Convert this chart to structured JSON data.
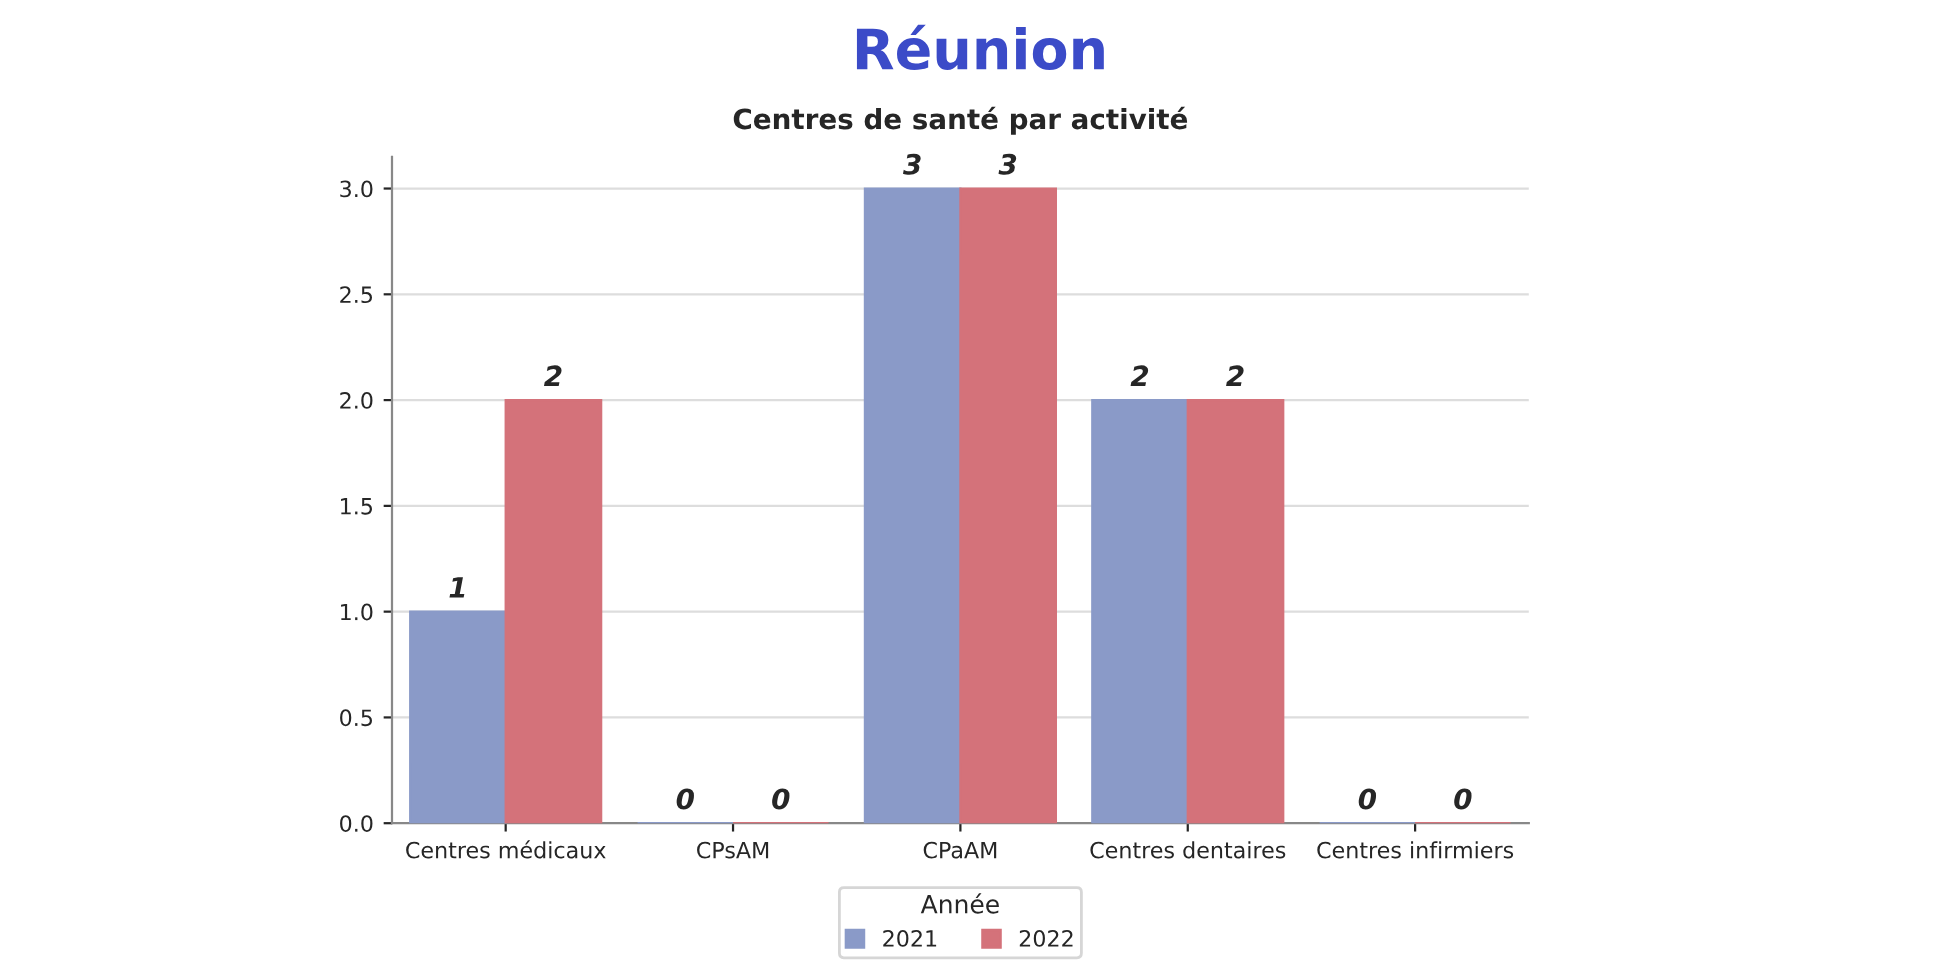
{
  "chart_data": {
    "type": "bar",
    "title": "Réunion",
    "subtitle": "Centres de santé par activité",
    "categories": [
      "Centres médicaux",
      "CPsAM",
      "CPaAM",
      "Centres dentaires",
      "Centres infirmiers"
    ],
    "series": [
      {
        "name": "2021",
        "color": "#8a9ac8",
        "values": [
          1,
          0,
          3,
          2,
          0
        ]
      },
      {
        "name": "2022",
        "color": "#d4727a",
        "values": [
          2,
          0,
          3,
          2,
          0
        ]
      }
    ],
    "legend_title": "Année",
    "legend": "bottom",
    "ylim": [
      0,
      3.15
    ],
    "yticks": [
      {
        "value": 0,
        "label": "0.0"
      },
      {
        "value": 0.5,
        "label": "0.5"
      },
      {
        "value": 1,
        "label": "1.0"
      },
      {
        "value": 1.5,
        "label": "1.5"
      },
      {
        "value": 2,
        "label": "2.0"
      },
      {
        "value": 2.5,
        "label": "2.5"
      },
      {
        "value": 3,
        "label": "3.0"
      }
    ],
    "grid": "y",
    "data_labels": true
  }
}
